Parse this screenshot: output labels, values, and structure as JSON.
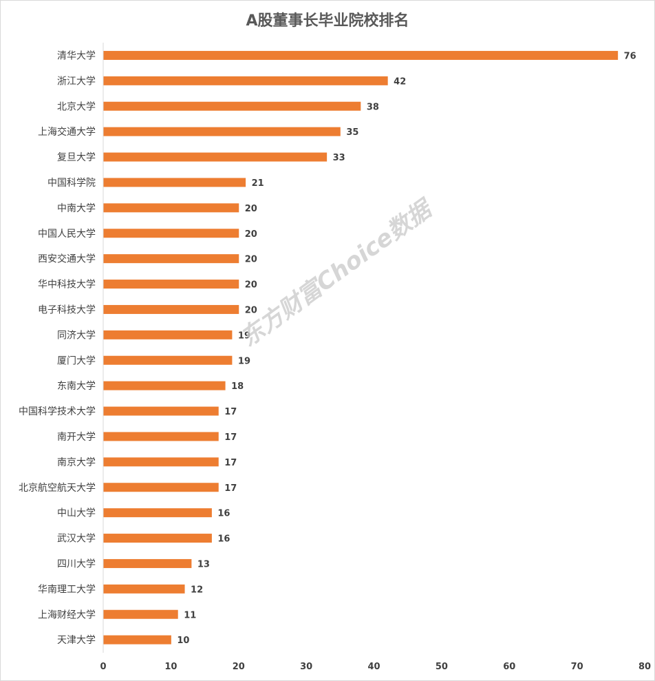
{
  "chart_data": {
    "type": "bar",
    "orientation": "horizontal",
    "title": "A股董事长毕业院校排名",
    "categories": [
      "清华大学",
      "浙江大学",
      "北京大学",
      "上海交通大学",
      "复旦大学",
      "中国科学院",
      "中南大学",
      "中国人民大学",
      "西安交通大学",
      "华中科技大学",
      "电子科技大学",
      "同济大学",
      "厦门大学",
      "东南大学",
      "中国科学技术大学",
      "南开大学",
      "南京大学",
      "北京航空航天大学",
      "中山大学",
      "武汉大学",
      "四川大学",
      "华南理工大学",
      "上海财经大学",
      "天津大学"
    ],
    "values": [
      76,
      42,
      38,
      35,
      33,
      21,
      20,
      20,
      20,
      20,
      20,
      19,
      19,
      18,
      17,
      17,
      17,
      17,
      16,
      16,
      13,
      12,
      11,
      10
    ],
    "xlim": [
      0,
      80
    ],
    "ticks": [
      0,
      10,
      20,
      30,
      40,
      50,
      60,
      70,
      80
    ],
    "grid": false,
    "legend": "none",
    "bar_color": "#ed7d31"
  },
  "watermark": "东方财富Choice数据"
}
